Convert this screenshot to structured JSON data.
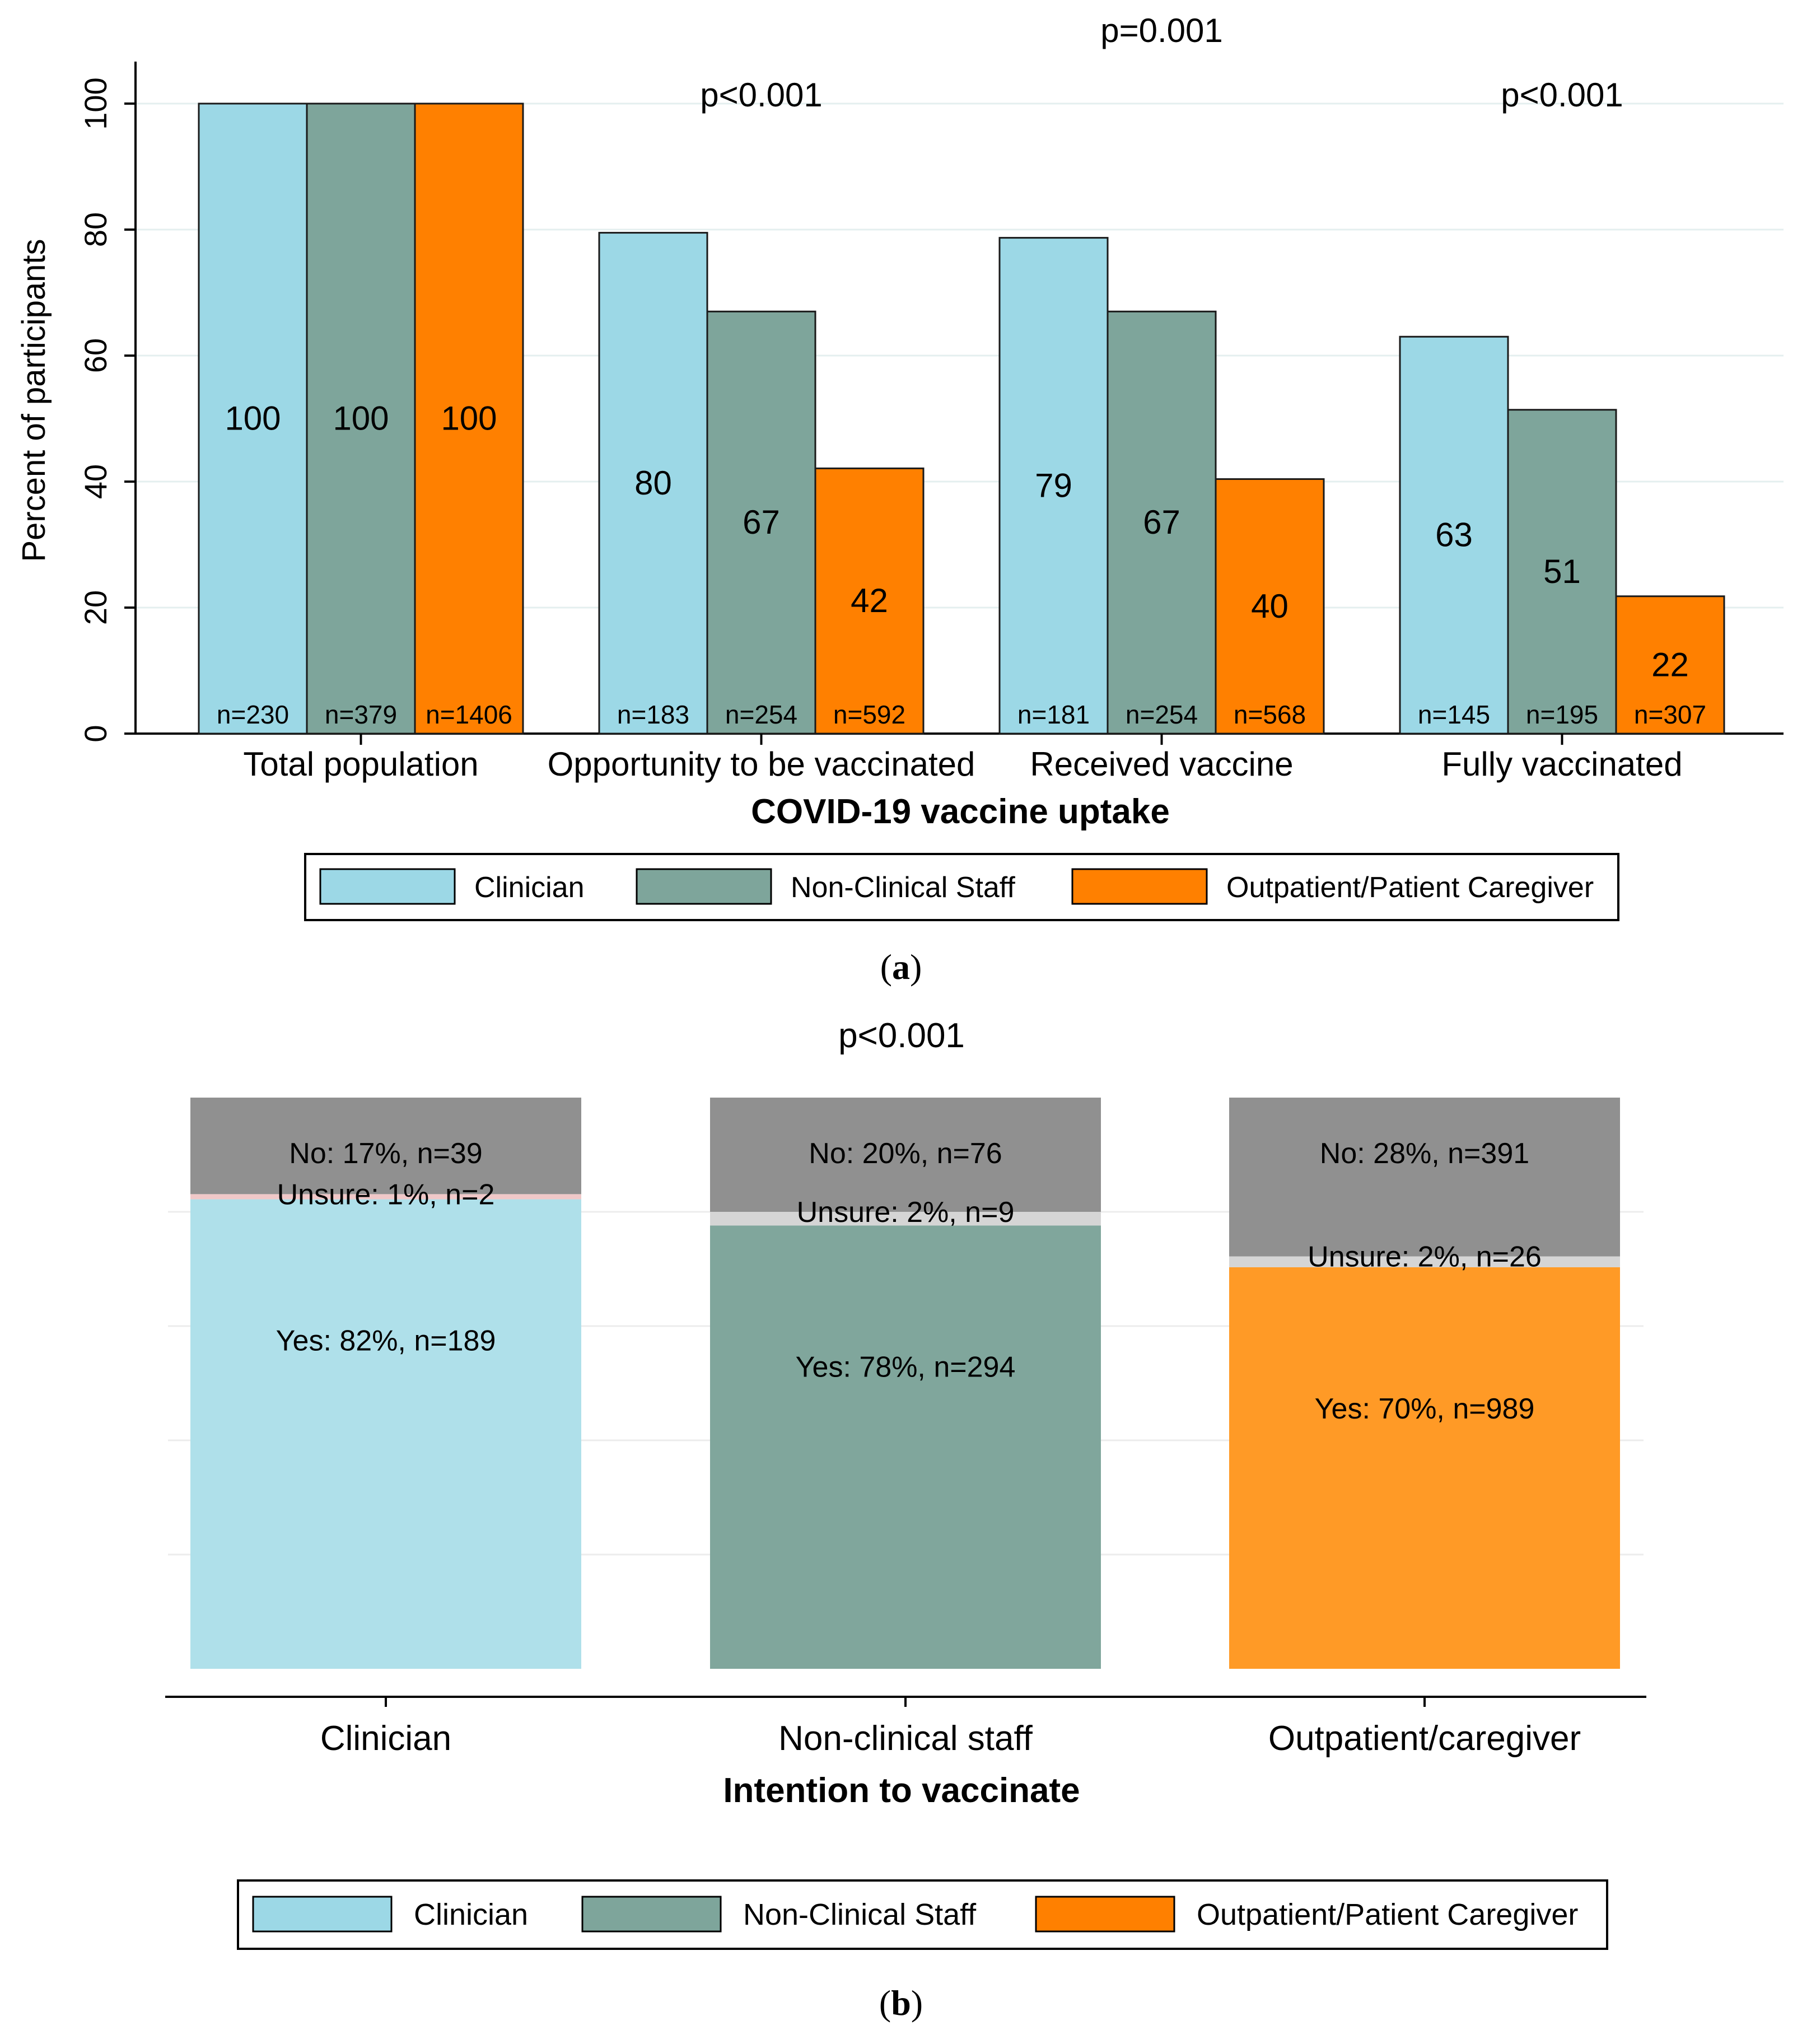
{
  "chart_data": [
    {
      "type": "bar",
      "panel": "a",
      "caption_letter": "a",
      "xlabel": "COVID-19 vaccine uptake",
      "ylabel": "Percent of participants",
      "ylim": [
        0,
        105
      ],
      "yticks": [
        "0",
        "20",
        "40",
        "60",
        "80",
        "100"
      ],
      "grid": true,
      "legend_position": "bottom",
      "categories": [
        "Total population",
        "Opportunity to be vaccinated",
        "Received vaccine",
        "Fully vaccinated"
      ],
      "p_values": [
        "",
        "p<0.001",
        "p=0.001",
        "p<0.001"
      ],
      "series": [
        {
          "name": "Clinician",
          "color": "#9cd8e6",
          "values": [
            100,
            79.5,
            78.7,
            63
          ],
          "labels": [
            "100",
            "80",
            "79",
            "63"
          ],
          "n": [
            "n=230",
            "n=183",
            "n=181",
            "n=145"
          ]
        },
        {
          "name": "Non-Clinical Staff",
          "color": "#7ea59b",
          "values": [
            100,
            67,
            67,
            51.4
          ],
          "labels": [
            "100",
            "67",
            "67",
            "51"
          ],
          "n": [
            "n=379",
            "n=254",
            "n=254",
            "n=195"
          ]
        },
        {
          "name": "Outpatient/Patient Caregiver",
          "color": "#ff8000",
          "values": [
            100,
            42.1,
            40.4,
            21.8
          ],
          "labels": [
            "100",
            "42",
            "40",
            "22"
          ],
          "n": [
            "n=1406",
            "n=592",
            "n=568",
            "n=307"
          ]
        }
      ]
    },
    {
      "type": "bar",
      "stacked": true,
      "panel": "b",
      "caption_letter": "b",
      "title": "p<0.001",
      "xlabel": "Intention to vaccinate",
      "ylim": [
        0,
        100
      ],
      "legend_position": "bottom",
      "categories": [
        "Clinician",
        "Non-clinical staff",
        "Outpatient/caregiver"
      ],
      "colors": {
        "yes": [
          "#afe0ea",
          "#80a69c",
          "#ff9a26"
        ],
        "unsure": "#d5d5d5",
        "unsure_clinician": "#f0c8c8",
        "no": "#909090"
      },
      "yes": {
        "values": [
          82.2,
          77.6,
          70.3
        ],
        "labels": [
          "Yes: 82%, n=189",
          "Yes: 78%, n=294",
          "Yes: 70%, n=989"
        ]
      },
      "unsure": {
        "values": [
          0.9,
          2.4,
          1.9
        ],
        "labels": [
          "Unsure: 1%, n=2",
          "Unsure: 2%, n=9",
          "Unsure: 2%, n=26"
        ]
      },
      "no": {
        "values": [
          17.0,
          20.0,
          27.8
        ],
        "labels": [
          "No: 17%, n=39",
          "No: 20%, n=76",
          "No: 28%, n=391"
        ]
      },
      "legend": [
        {
          "name": "Clinician",
          "color": "#9cd8e6"
        },
        {
          "name": "Non-Clinical Staff",
          "color": "#7ea59b"
        },
        {
          "name": "Outpatient/Patient Caregiver",
          "color": "#ff8000"
        }
      ]
    }
  ]
}
